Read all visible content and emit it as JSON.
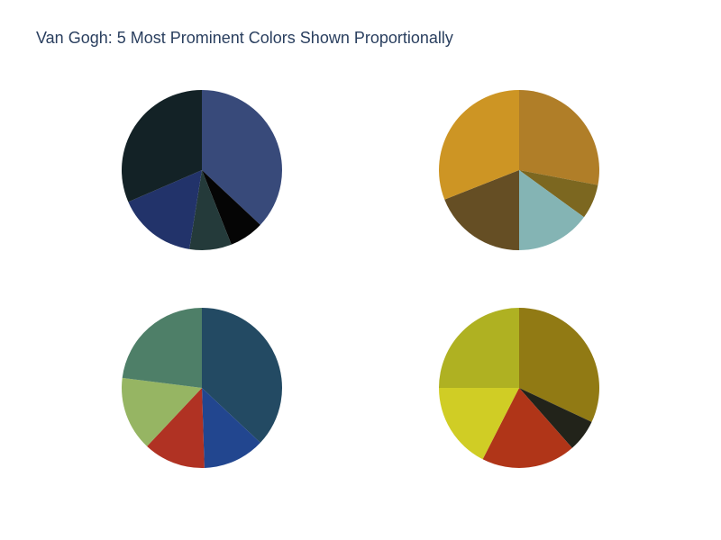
{
  "title": "Van Gogh: 5 Most Prominent Colors Shown Proportionally",
  "chart_data": [
    {
      "type": "pie",
      "values": [
        37,
        7,
        8.5,
        16,
        31.5
      ],
      "colors": [
        "#384a7a",
        "#050505",
        "#243a3a",
        "#22336a",
        "#132226"
      ]
    },
    {
      "type": "pie",
      "values": [
        28,
        7,
        15,
        19,
        31
      ],
      "colors": [
        "#b07e28",
        "#7c6720",
        "#84b4b4",
        "#654e24",
        "#cd9524"
      ]
    },
    {
      "type": "pie",
      "values": [
        37,
        12.5,
        12.5,
        15,
        23
      ],
      "colors": [
        "#234a63",
        "#22468f",
        "#b03223",
        "#96b563",
        "#4e7f68"
      ]
    },
    {
      "type": "pie",
      "values": [
        32,
        6.5,
        19,
        17.5,
        25
      ],
      "colors": [
        "#917a14",
        "#22231a",
        "#b03518",
        "#d0cd25",
        "#afb122"
      ]
    }
  ]
}
